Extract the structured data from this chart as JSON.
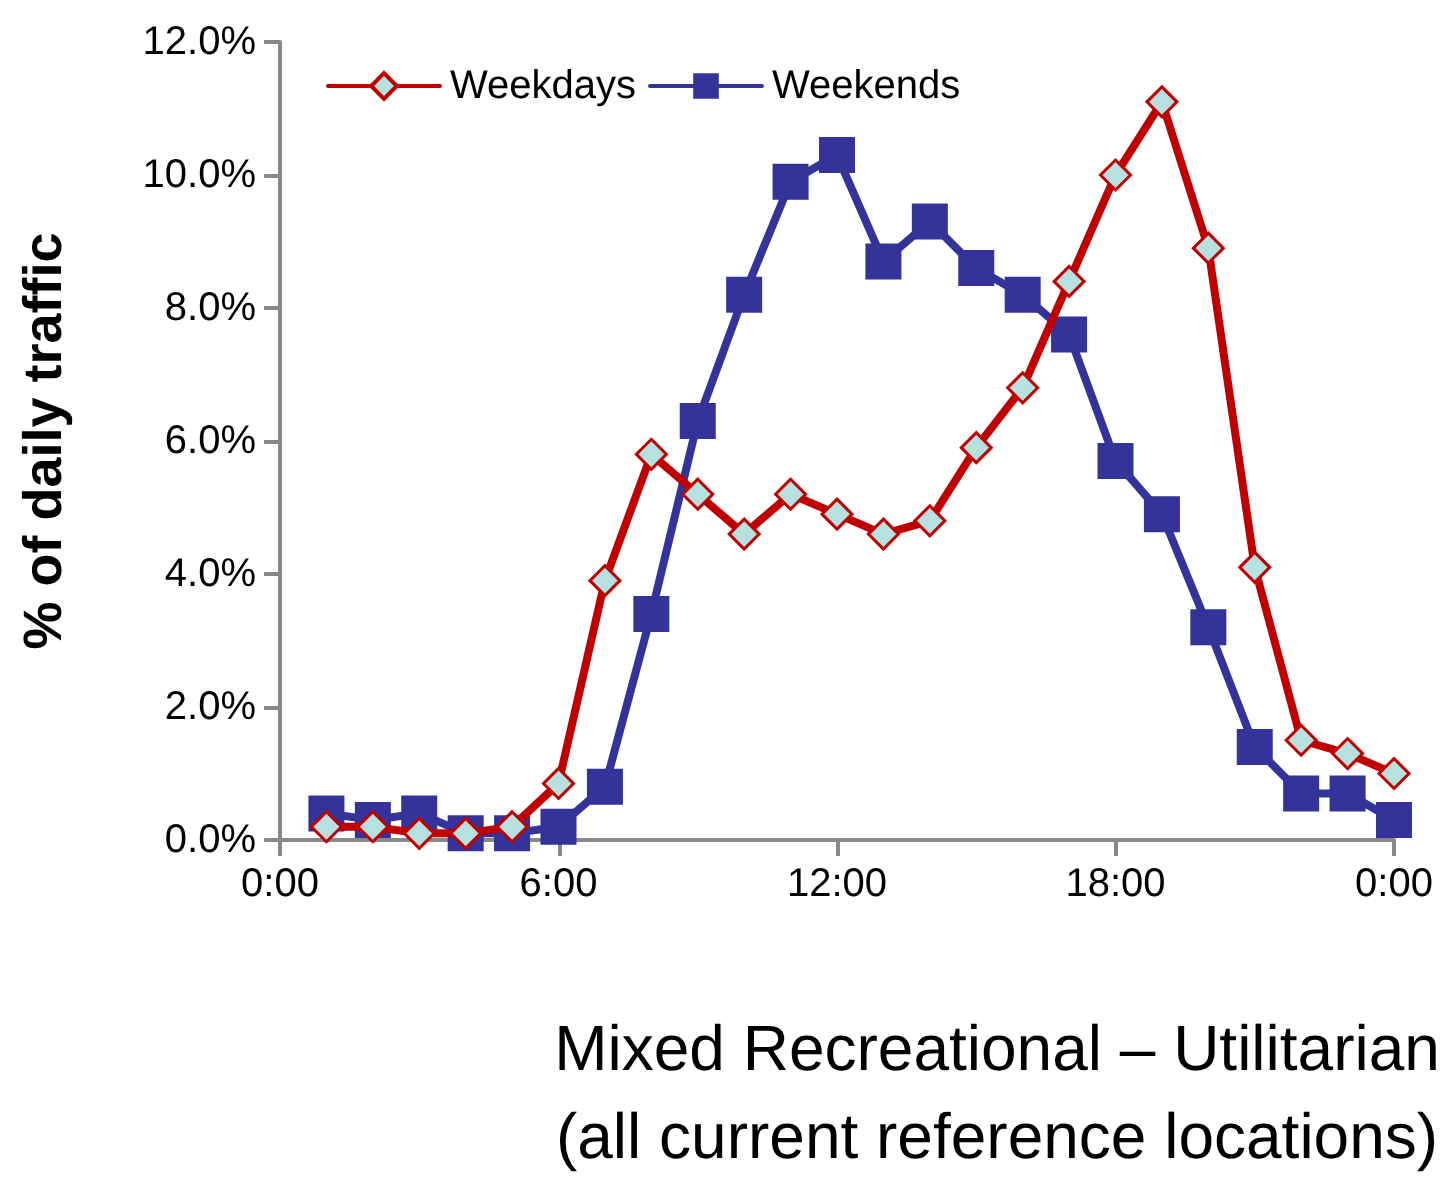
{
  "chart_data": {
    "type": "line",
    "x": [
      1,
      2,
      3,
      4,
      5,
      6,
      7,
      8,
      9,
      10,
      11,
      12,
      13,
      14,
      15,
      16,
      17,
      18,
      19,
      20,
      21,
      22,
      23,
      24
    ],
    "series": [
      {
        "name": "Weekdays",
        "color": "#c00000",
        "marker": "diamond",
        "values": [
          0.2,
          0.2,
          0.1,
          0.1,
          0.2,
          0.85,
          3.9,
          5.8,
          5.2,
          4.6,
          5.2,
          4.9,
          4.6,
          4.8,
          5.9,
          6.8,
          8.4,
          10.0,
          11.1,
          8.9,
          4.1,
          1.5,
          1.3,
          1.0
        ]
      },
      {
        "name": "Weekends",
        "color": "#333399",
        "marker": "square",
        "values": [
          0.4,
          0.3,
          0.4,
          0.1,
          0.1,
          0.2,
          0.8,
          3.4,
          6.3,
          8.2,
          9.9,
          10.3,
          8.7,
          9.3,
          8.6,
          8.2,
          7.6,
          5.7,
          4.9,
          3.2,
          1.4,
          0.7,
          0.7,
          0.3
        ]
      }
    ],
    "xlim": [
      0,
      24
    ],
    "xticks": [
      {
        "value": 0,
        "label": "0:00"
      },
      {
        "value": 6,
        "label": "6:00"
      },
      {
        "value": 12,
        "label": "12:00"
      },
      {
        "value": 18,
        "label": "18:00"
      },
      {
        "value": 24,
        "label": "0:00"
      }
    ],
    "ylim": [
      0,
      12
    ],
    "yticks": [
      {
        "value": 0,
        "label": "0.0%"
      },
      {
        "value": 2,
        "label": "2.0%"
      },
      {
        "value": 4,
        "label": "4.0%"
      },
      {
        "value": 6,
        "label": "6.0%"
      },
      {
        "value": 8,
        "label": "8.0%"
      },
      {
        "value": 10,
        "label": "10.0%"
      },
      {
        "value": 12,
        "label": "12.0%"
      }
    ],
    "xlabel": "Mixed Recreational – Utilitarian\n(all current reference locations)",
    "ylabel": "% of daily traffic",
    "grid": false,
    "legend": "top left",
    "line_style": "solid"
  }
}
